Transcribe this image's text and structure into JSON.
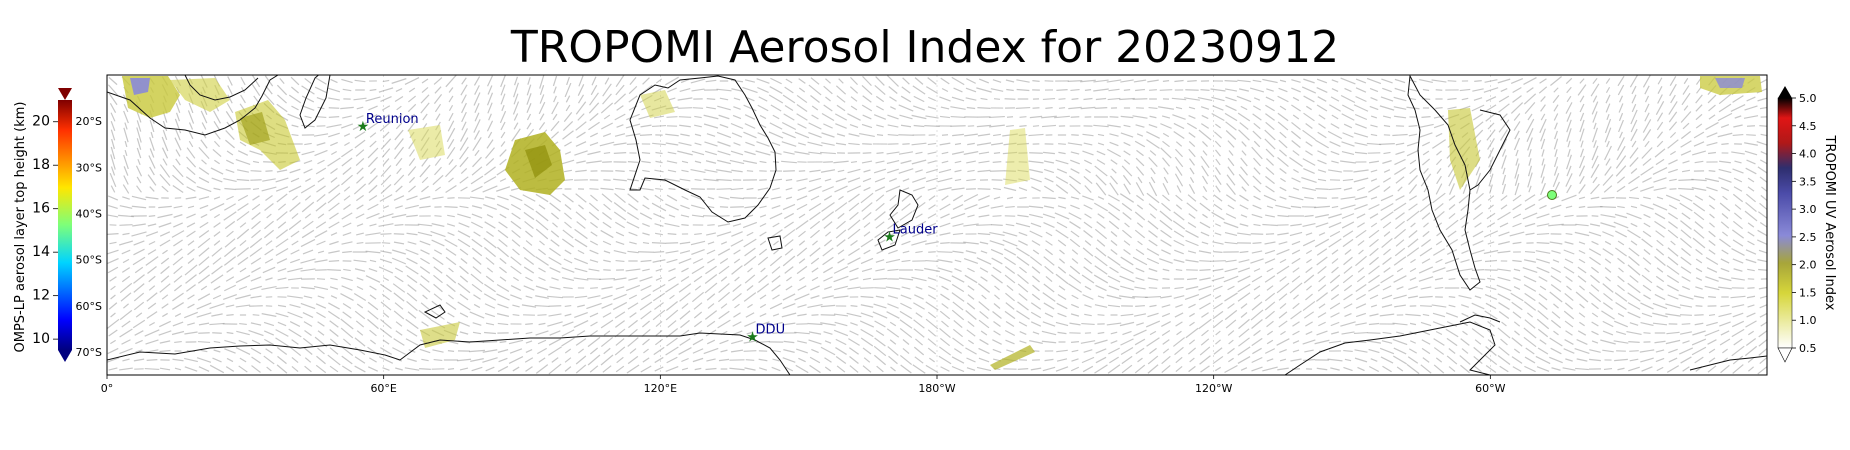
{
  "title": "TROPOMI Aerosol Index for 20230912",
  "map": {
    "lon_ticks": [
      "0°",
      "60°E",
      "120°E",
      "180°W",
      "120°W",
      "60°W"
    ],
    "lat_ticks": [
      "20°S",
      "30°S",
      "40°S",
      "50°S",
      "60°S",
      "70°S"
    ],
    "lat_range": [
      -75,
      -10
    ],
    "lon_range": [
      0,
      360
    ],
    "stations": [
      {
        "name": "Reunion",
        "lat": -21.1,
        "lon": 55.5
      },
      {
        "name": "Lauder",
        "lat": -45.0,
        "lon": 169.7
      },
      {
        "name": "DDU",
        "lat": -66.7,
        "lon": 140.0
      }
    ],
    "wind_vectors": "gray arrows",
    "omps_points": [
      {
        "lon": 313,
        "lat": -35,
        "height_km": 16
      }
    ]
  },
  "colorbar_left": {
    "label": "OMPS-LP aerosol layer top height (km)",
    "ticks": [
      "10",
      "12",
      "14",
      "16",
      "18",
      "20"
    ],
    "range": [
      9.5,
      21
    ],
    "colormap": "jet",
    "extend": "both"
  },
  "colorbar_right": {
    "label": "TROPOMI UV Aerosol Index",
    "ticks": [
      "0.5",
      "1.0",
      "1.5",
      "2.0",
      "2.5",
      "3.0",
      "3.5",
      "4.0",
      "4.5",
      "5.0"
    ],
    "range": [
      0.5,
      5.0
    ],
    "colors": [
      "#ffffff",
      "#c2c21b",
      "#7a7adf",
      "#3f3f8f",
      "#d11212",
      "#000000"
    ],
    "extend": "both"
  }
}
